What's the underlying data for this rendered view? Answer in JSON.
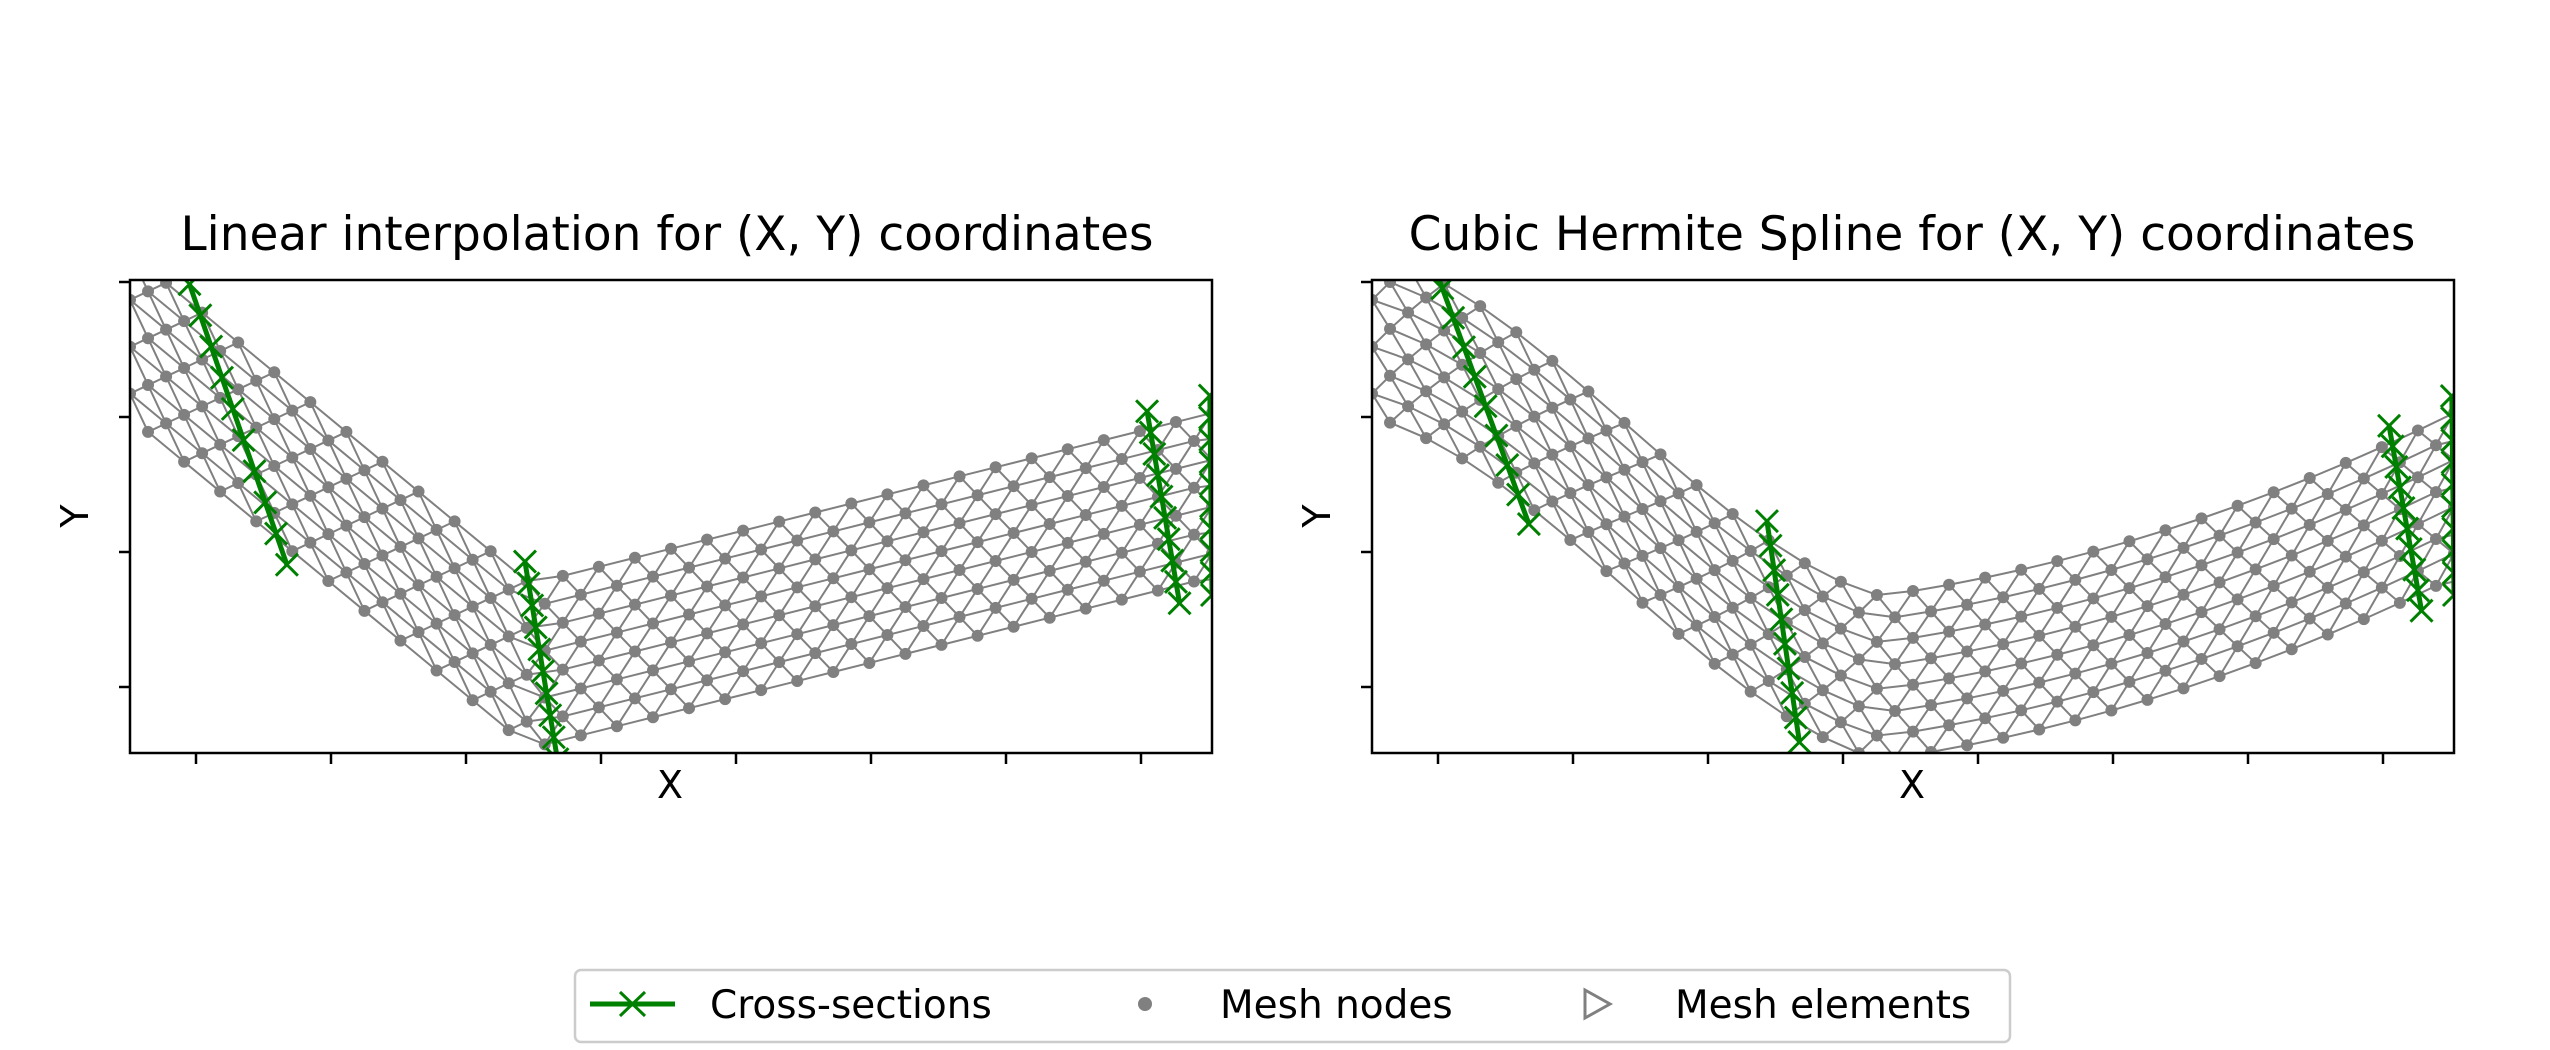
{
  "legend": {
    "cross_sections": "Cross-sections",
    "mesh_nodes": "Mesh nodes",
    "mesh_elements": "Mesh elements",
    "placement": "lower-center"
  },
  "colors": {
    "cross_section": "#008000",
    "mesh": "#808080",
    "node": "#808080",
    "axes": "#000000",
    "legend_border": "#cccccc"
  },
  "icons": {
    "cross_section_marker": "x-marker-icon",
    "node_marker": "dot-marker-icon",
    "element_marker": "triangle-right-outline-icon"
  },
  "chart_data": [
    {
      "type": "scatter",
      "title": "Linear interpolation for (X, Y) coordinates",
      "xlabel": "X",
      "ylabel": "Y",
      "xtick_count": 8,
      "ytick_count": 4,
      "tick_labels_shown": false,
      "grid": false,
      "centerline": "linear",
      "mesh": {
        "columns": 30,
        "rows": 7
      },
      "series": [
        {
          "name": "Cross-sections",
          "marker": "x"
        },
        {
          "name": "Mesh nodes",
          "marker": "o"
        },
        {
          "name": "Mesh elements",
          "marker": "triangle"
        }
      ],
      "cross_sections": [
        {
          "x_start": 0.055,
          "x_end": 0.145
        },
        {
          "x_start": 0.365,
          "x_end": 0.395
        },
        {
          "x_start": 0.94,
          "x_end": 0.97
        },
        {
          "x_start": 0.998,
          "x_end": 1.0
        }
      ]
    },
    {
      "type": "scatter",
      "title": "Cubic Hermite Spline for (X, Y) coordinates",
      "xlabel": "X",
      "ylabel": "Y",
      "xtick_count": 8,
      "ytick_count": 4,
      "tick_labels_shown": false,
      "grid": false,
      "centerline": "cubic-hermite",
      "mesh": {
        "columns": 30,
        "rows": 7
      },
      "series": [
        {
          "name": "Cross-sections",
          "marker": "x"
        },
        {
          "name": "Mesh nodes",
          "marker": "o"
        },
        {
          "name": "Mesh elements",
          "marker": "triangle"
        }
      ],
      "cross_sections": [
        {
          "x_start": 0.055,
          "x_end": 0.145
        },
        {
          "x_start": 0.365,
          "x_end": 0.395
        },
        {
          "x_start": 0.94,
          "x_end": 0.97
        },
        {
          "x_start": 0.998,
          "x_end": 1.0
        }
      ]
    }
  ]
}
